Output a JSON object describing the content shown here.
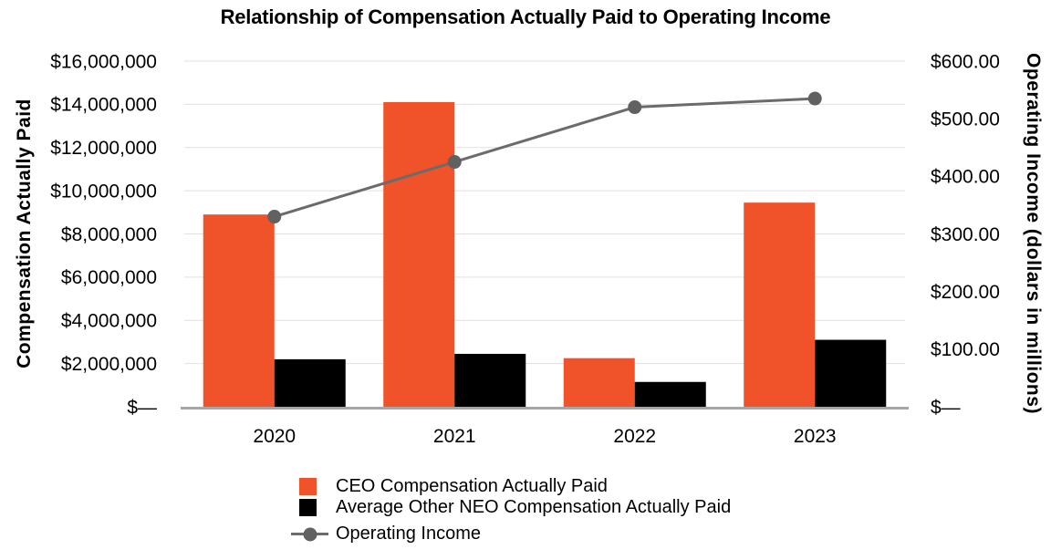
{
  "chart_data": {
    "type": "combo",
    "title": "Relationship of Compensation Actually Paid to Operating Income",
    "categories": [
      "2020",
      "2021",
      "2022",
      "2023"
    ],
    "series": [
      {
        "name": "CEO Compensation Actually Paid",
        "type": "bar",
        "axis": "left",
        "color": "#F0522A",
        "values": [
          8900000,
          14100000,
          2250000,
          9450000
        ]
      },
      {
        "name": "Average Other NEO Compensation Actually Paid",
        "type": "bar",
        "axis": "left",
        "color": "#000000",
        "values": [
          2200000,
          2450000,
          1150000,
          3100000
        ]
      },
      {
        "name": "Operating Income",
        "type": "line",
        "axis": "right",
        "color": "#6B6B6B",
        "marker_color": "#616161",
        "values": [
          330,
          425,
          520,
          535
        ]
      }
    ],
    "left_axis": {
      "title": "Compensation Actually Paid",
      "min": 0,
      "max": 16000000,
      "step": 2000000,
      "tick_labels": [
        "$—",
        "$2,000,000",
        "$4,000,000",
        "$6,000,000",
        "$8,000,000",
        "$10,000,000",
        "$12,000,000",
        "$14,000,000",
        "$16,000,000"
      ]
    },
    "right_axis": {
      "title": "Operating Income (dollars in millions)",
      "min": 0,
      "max": 600,
      "step": 100,
      "tick_labels": [
        "$—",
        "$100.00",
        "$200.00",
        "$300.00",
        "$400.00",
        "$500.00",
        "$600.00"
      ]
    },
    "grid": "horizontal-only",
    "legend_position": "bottom-left",
    "legend": [
      "CEO Compensation Actually Paid",
      "Average Other NEO Compensation Actually Paid",
      "Operating Income"
    ]
  }
}
